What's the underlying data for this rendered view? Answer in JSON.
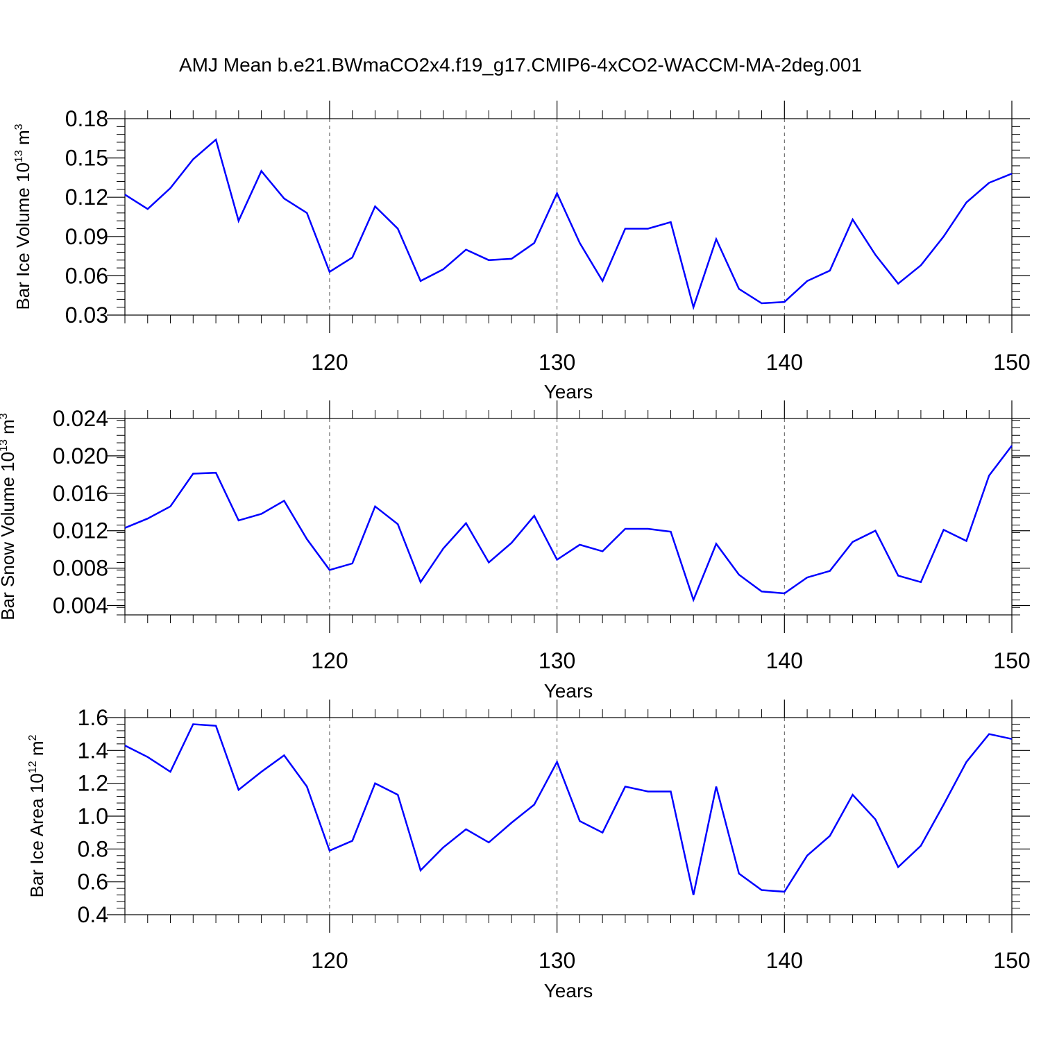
{
  "title": "AMJ Mean b.e21.BWmaCO2x4.f19_g17.CMIP6-4xCO2-WACCM-MA-2deg.001",
  "colors": {
    "line": "#0000ff",
    "axis": "#000000",
    "grid": "#555555"
  },
  "chart_data": [
    {
      "type": "line",
      "ylabel": {
        "base": "Bar Ice Volume 10",
        "exp": "13",
        "unit": " m",
        "unit_exp": "3"
      },
      "xlabel": "Years",
      "xlim": [
        111,
        150
      ],
      "ylim": [
        0.03,
        0.18
      ],
      "xticks": [
        120,
        130,
        140,
        150
      ],
      "xtick_labels": [
        "120",
        "130",
        "140",
        "150"
      ],
      "yticks": [
        0.03,
        0.06,
        0.09,
        0.12,
        0.15,
        0.18
      ],
      "ytick_labels": [
        "0.03",
        "0.06",
        "0.09",
        "0.12",
        "0.15",
        "0.18"
      ],
      "grid_x": [
        120,
        130,
        140
      ],
      "x": [
        111,
        112,
        113,
        114,
        115,
        116,
        117,
        118,
        119,
        120,
        121,
        122,
        123,
        124,
        125,
        126,
        127,
        128,
        129,
        130,
        131,
        132,
        133,
        134,
        135,
        136,
        137,
        138,
        139,
        140,
        141,
        142,
        143,
        144,
        145,
        146,
        147,
        148,
        149,
        150
      ],
      "values": [
        0.122,
        0.111,
        0.127,
        0.149,
        0.164,
        0.102,
        0.14,
        0.119,
        0.108,
        0.063,
        0.074,
        0.113,
        0.096,
        0.056,
        0.065,
        0.08,
        0.072,
        0.073,
        0.085,
        0.123,
        0.085,
        0.056,
        0.096,
        0.096,
        0.101,
        0.036,
        0.088,
        0.05,
        0.039,
        0.04,
        0.056,
        0.064,
        0.103,
        0.076,
        0.054,
        0.068,
        0.09,
        0.116,
        0.131,
        0.138
      ]
    },
    {
      "type": "line",
      "ylabel": {
        "base": "Bar Snow Volume 10",
        "exp": "13",
        "unit": " m",
        "unit_exp": "3"
      },
      "xlabel": "Years",
      "xlim": [
        111,
        150
      ],
      "ylim": [
        0.003,
        0.024
      ],
      "xticks": [
        120,
        130,
        140,
        150
      ],
      "xtick_labels": [
        "120",
        "130",
        "140",
        "150"
      ],
      "yticks": [
        0.004,
        0.008,
        0.012,
        0.016,
        0.02,
        0.024
      ],
      "ytick_labels": [
        "0.004",
        "0.008",
        "0.012",
        "0.016",
        "0.020",
        "0.024"
      ],
      "grid_x": [
        120,
        130,
        140
      ],
      "x": [
        111,
        112,
        113,
        114,
        115,
        116,
        117,
        118,
        119,
        120,
        121,
        122,
        123,
        124,
        125,
        126,
        127,
        128,
        129,
        130,
        131,
        132,
        133,
        134,
        135,
        136,
        137,
        138,
        139,
        140,
        141,
        142,
        143,
        144,
        145,
        146,
        147,
        148,
        149,
        150
      ],
      "values": [
        0.0123,
        0.0133,
        0.0146,
        0.0181,
        0.0182,
        0.0131,
        0.0138,
        0.0152,
        0.0111,
        0.0078,
        0.0085,
        0.0146,
        0.0127,
        0.0065,
        0.0101,
        0.0128,
        0.0086,
        0.0107,
        0.0136,
        0.0089,
        0.0105,
        0.0098,
        0.0122,
        0.0122,
        0.0119,
        0.0046,
        0.0106,
        0.0073,
        0.0055,
        0.0053,
        0.007,
        0.0077,
        0.0108,
        0.012,
        0.0072,
        0.0065,
        0.0121,
        0.0109,
        0.0179,
        0.0211
      ]
    },
    {
      "type": "line",
      "ylabel": {
        "base": "Bar Ice Area 10",
        "exp": "12",
        "unit": " m",
        "unit_exp": "2"
      },
      "xlabel": "Years",
      "xlim": [
        111,
        150
      ],
      "ylim": [
        0.4,
        1.6
      ],
      "xticks": [
        120,
        130,
        140,
        150
      ],
      "xtick_labels": [
        "120",
        "130",
        "140",
        "150"
      ],
      "yticks": [
        0.4,
        0.6,
        0.8,
        1.0,
        1.2,
        1.4,
        1.6
      ],
      "ytick_labels": [
        "0.4",
        "0.6",
        "0.8",
        "1.0",
        "1.2",
        "1.4",
        "1.6"
      ],
      "grid_x": [
        120,
        130,
        140
      ],
      "x": [
        111,
        112,
        113,
        114,
        115,
        116,
        117,
        118,
        119,
        120,
        121,
        122,
        123,
        124,
        125,
        126,
        127,
        128,
        129,
        130,
        131,
        132,
        133,
        134,
        135,
        136,
        137,
        138,
        139,
        140,
        141,
        142,
        143,
        144,
        145,
        146,
        147,
        148,
        149,
        150
      ],
      "values": [
        1.43,
        1.36,
        1.27,
        1.56,
        1.55,
        1.16,
        1.27,
        1.37,
        1.18,
        0.79,
        0.85,
        1.2,
        1.13,
        0.67,
        0.81,
        0.92,
        0.84,
        0.96,
        1.07,
        1.33,
        0.97,
        0.9,
        1.18,
        1.15,
        1.15,
        0.52,
        1.18,
        0.65,
        0.55,
        0.54,
        0.76,
        0.88,
        1.13,
        0.98,
        0.69,
        0.82,
        1.07,
        1.33,
        1.5,
        1.47
      ]
    }
  ]
}
